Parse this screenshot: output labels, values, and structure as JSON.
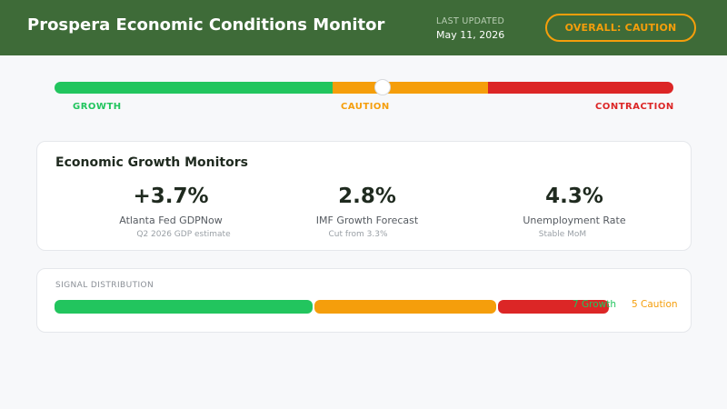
{
  "header": {
    "title": "Prospera Economic Conditions Monitor",
    "last_updated_label": "LAST UPDATED",
    "last_updated_value": "May 11, 2026",
    "overall_badge": "OVERALL: CAUTION"
  },
  "gauge": {
    "zones": [
      "GROWTH",
      "CAUTION",
      "CONTRACTION"
    ],
    "marker_position": 0.53
  },
  "monitors": {
    "title": "Economic Growth Monitors",
    "metrics": [
      {
        "value": "+3.7%",
        "label": "Atlanta Fed GDPNow",
        "note": "Q2 2026 GDP estimate"
      },
      {
        "value": "2.8%",
        "label": "IMF Growth Forecast",
        "note": "Cut from 3.3%"
      },
      {
        "value": "4.3%",
        "label": "Unemployment Rate",
        "note": "Stable MoM"
      }
    ]
  },
  "distribution": {
    "title": "SIGNAL DISTRIBUTION",
    "growth_legend": "7 Growth",
    "caution_legend": "5 Caution"
  },
  "colors": {
    "header_bg": "#3e6b38",
    "growth": "#22c55e",
    "caution": "#f59e0b",
    "contraction": "#dc2626"
  }
}
